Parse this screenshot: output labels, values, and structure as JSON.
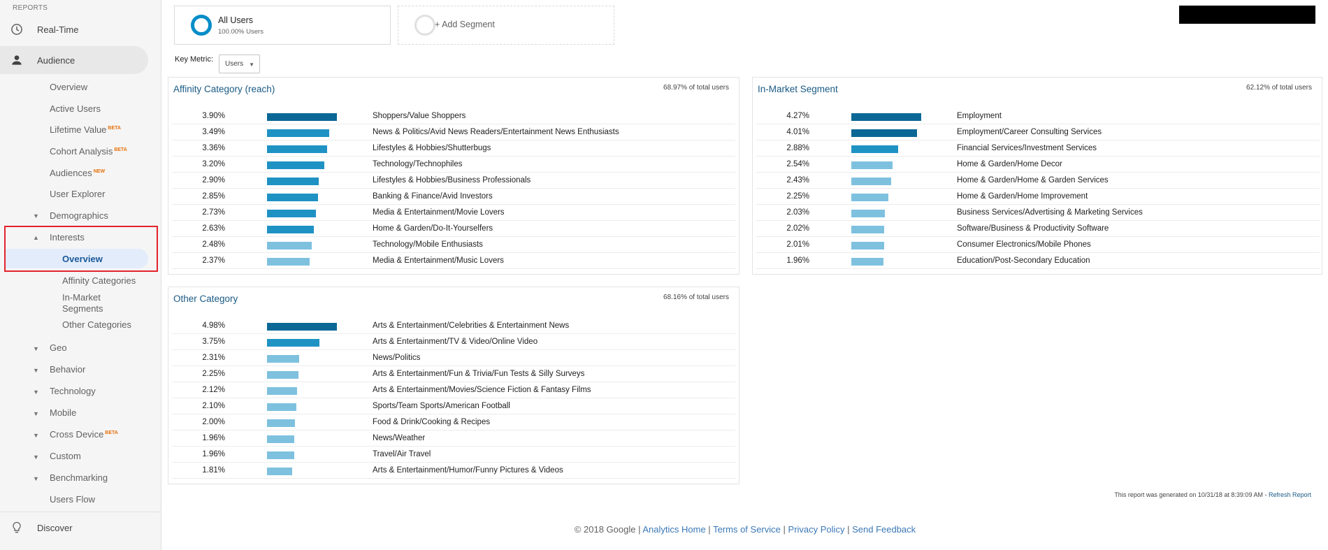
{
  "sidebar": {
    "section_label": "REPORTS",
    "realtime": "Real-Time",
    "audience": "Audience",
    "discover": "Discover",
    "audience_items": [
      {
        "label": "Overview",
        "badge": ""
      },
      {
        "label": "Active Users",
        "badge": ""
      },
      {
        "label": "Lifetime Value",
        "badge": "BETA"
      },
      {
        "label": "Cohort Analysis",
        "badge": "BETA"
      },
      {
        "label": "Audiences",
        "badge": "NEW"
      },
      {
        "label": "User Explorer",
        "badge": ""
      }
    ],
    "demographics": "Demographics",
    "interests": "Interests",
    "interests_sub": [
      "Overview",
      "Affinity Categories",
      "In-Market",
      "Segments",
      "Other Categories"
    ],
    "groups": [
      {
        "label": "Geo",
        "badge": ""
      },
      {
        "label": "Behavior",
        "badge": ""
      },
      {
        "label": "Technology",
        "badge": ""
      },
      {
        "label": "Mobile",
        "badge": ""
      },
      {
        "label": "Cross Device",
        "badge": "BETA"
      },
      {
        "label": "Custom",
        "badge": ""
      },
      {
        "label": "Benchmarking",
        "badge": ""
      }
    ],
    "users_flow": "Users Flow"
  },
  "segments": {
    "all_users": "All Users",
    "all_users_pct": "100.00% Users",
    "add_segment": "+ Add Segment"
  },
  "key_metric": {
    "label": "Key Metric:",
    "value": "Users"
  },
  "panels": {
    "affinity": {
      "title": "Affinity Category (reach)",
      "total": "68.97% of total users",
      "rows": [
        {
          "pct": "3.90%",
          "value": 3.9,
          "category": "Shoppers/Value Shoppers"
        },
        {
          "pct": "3.49%",
          "value": 3.49,
          "category": "News & Politics/Avid News Readers/Entertainment News Enthusiasts"
        },
        {
          "pct": "3.36%",
          "value": 3.36,
          "category": "Lifestyles & Hobbies/Shutterbugs"
        },
        {
          "pct": "3.20%",
          "value": 3.2,
          "category": "Technology/Technophiles"
        },
        {
          "pct": "2.90%",
          "value": 2.9,
          "category": "Lifestyles & Hobbies/Business Professionals"
        },
        {
          "pct": "2.85%",
          "value": 2.85,
          "category": "Banking & Finance/Avid Investors"
        },
        {
          "pct": "2.73%",
          "value": 2.73,
          "category": "Media & Entertainment/Movie Lovers"
        },
        {
          "pct": "2.63%",
          "value": 2.63,
          "category": "Home & Garden/Do-It-Yourselfers"
        },
        {
          "pct": "2.48%",
          "value": 2.48,
          "category": "Technology/Mobile Enthusiasts"
        },
        {
          "pct": "2.37%",
          "value": 2.37,
          "category": "Media & Entertainment/Music Lovers"
        }
      ]
    },
    "inmarket": {
      "title": "In-Market Segment",
      "total": "62.12% of total users",
      "rows": [
        {
          "pct": "4.27%",
          "value": 4.27,
          "category": "Employment"
        },
        {
          "pct": "4.01%",
          "value": 4.01,
          "category": "Employment/Career Consulting Services"
        },
        {
          "pct": "2.88%",
          "value": 2.88,
          "category": "Financial Services/Investment Services"
        },
        {
          "pct": "2.54%",
          "value": 2.54,
          "category": "Home & Garden/Home Decor"
        },
        {
          "pct": "2.43%",
          "value": 2.43,
          "category": "Home & Garden/Home & Garden Services"
        },
        {
          "pct": "2.25%",
          "value": 2.25,
          "category": "Home & Garden/Home Improvement"
        },
        {
          "pct": "2.03%",
          "value": 2.03,
          "category": "Business Services/Advertising & Marketing Services"
        },
        {
          "pct": "2.02%",
          "value": 2.02,
          "category": "Software/Business & Productivity Software"
        },
        {
          "pct": "2.01%",
          "value": 2.01,
          "category": "Consumer Electronics/Mobile Phones"
        },
        {
          "pct": "1.96%",
          "value": 1.96,
          "category": "Education/Post-Secondary Education"
        }
      ]
    },
    "other": {
      "title": "Other Category",
      "total": "68.16% of total users",
      "rows": [
        {
          "pct": "4.98%",
          "value": 4.98,
          "category": "Arts & Entertainment/Celebrities & Entertainment News"
        },
        {
          "pct": "3.75%",
          "value": 3.75,
          "category": "Arts & Entertainment/TV & Video/Online Video"
        },
        {
          "pct": "2.31%",
          "value": 2.31,
          "category": "News/Politics"
        },
        {
          "pct": "2.25%",
          "value": 2.25,
          "category": "Arts & Entertainment/Fun & Trivia/Fun Tests & Silly Surveys"
        },
        {
          "pct": "2.12%",
          "value": 2.12,
          "category": "Arts & Entertainment/Movies/Science Fiction & Fantasy Films"
        },
        {
          "pct": "2.10%",
          "value": 2.1,
          "category": "Sports/Team Sports/American Football"
        },
        {
          "pct": "2.00%",
          "value": 2.0,
          "category": "Food & Drink/Cooking & Recipes"
        },
        {
          "pct": "1.96%",
          "value": 1.96,
          "category": "News/Weather"
        },
        {
          "pct": "1.96%",
          "value": 1.96,
          "category": "Travel/Air Travel"
        },
        {
          "pct": "1.81%",
          "value": 1.81,
          "category": "Arts & Entertainment/Humor/Funny Pictures & Videos"
        }
      ]
    }
  },
  "report_generated": "This report was generated on 10/31/18 at 8:39:09 AM -",
  "refresh_report": "Refresh Report",
  "footer": {
    "copyright": "© 2018 Google |",
    "analytics_home": "Analytics Home",
    "terms": "Terms of Service",
    "privacy": "Privacy Policy",
    "feedback": "Send Feedback",
    "sep": "|"
  },
  "colors": {
    "bar_dark": "#0b6896",
    "bar_mid": "#1f92c4",
    "bar_light": "#7ec1df",
    "link": "#3b78b5",
    "highlight_box": "#e3232d"
  }
}
